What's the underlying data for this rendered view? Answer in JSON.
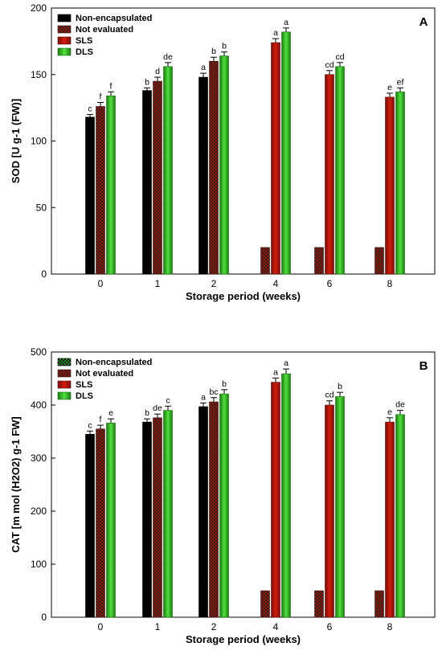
{
  "colors": {
    "non_encapsulated": "#000000",
    "not_evaluated": "#8b1c12",
    "not_evaluated_check": "#3a1a14",
    "sls": "#d01c0c",
    "sls_dark": "#7a0f08",
    "dls": "#3bd12b",
    "dls_dark": "#1c7a12"
  },
  "chart_data": [
    {
      "type": "bar",
      "panel_label": "A",
      "ylabel": "SOD [U g-1 (FW)]",
      "xlabel": "Storage period (weeks)",
      "ylim": [
        0,
        200
      ],
      "yticks": [
        0,
        50,
        100,
        150,
        200
      ],
      "categories": [
        "0",
        "1",
        "2",
        "4",
        "6",
        "8"
      ],
      "legend_position": "top-left",
      "series": [
        {
          "name": "Non-encapsulated",
          "values": [
            118,
            138,
            148,
            null,
            null,
            null
          ],
          "errors": [
            2,
            2,
            3,
            0,
            0,
            0
          ],
          "letters": [
            "c",
            "b",
            "a",
            "",
            "",
            ""
          ]
        },
        {
          "name": "Not evaluated",
          "values": [
            126,
            145,
            160,
            20,
            20,
            20
          ],
          "errors": [
            3,
            3,
            3,
            0,
            0,
            0
          ],
          "letters": [
            "f",
            "d",
            "b",
            "",
            "",
            ""
          ]
        },
        {
          "name": "SLS",
          "values": [
            null,
            null,
            null,
            174,
            150,
            133
          ],
          "errors": [
            0,
            0,
            0,
            3,
            3,
            3
          ],
          "letters": [
            "",
            "",
            "",
            "a",
            "cd",
            "e"
          ]
        },
        {
          "name": "DLS",
          "values": [
            134,
            156,
            164,
            182,
            156,
            137
          ],
          "errors": [
            3,
            3,
            3,
            3,
            3,
            3
          ],
          "letters": [
            "f",
            "de",
            "b",
            "a",
            "cd",
            "ef"
          ]
        }
      ]
    },
    {
      "type": "bar",
      "panel_label": "B",
      "ylabel": "CAT [m mol (H2O2) g-1 FW]",
      "xlabel": "Storage period (weeks)",
      "ylim": [
        0,
        500
      ],
      "yticks": [
        0,
        100,
        200,
        300,
        400,
        500
      ],
      "categories": [
        "0",
        "1",
        "2",
        "4",
        "6",
        "8"
      ],
      "legend_position": "top-left",
      "series": [
        {
          "name": "Non-encapsulated",
          "values": [
            345,
            368,
            397,
            null,
            null,
            null
          ],
          "errors": [
            6,
            6,
            7,
            0,
            0,
            0
          ],
          "letters": [
            "c",
            "b",
            "a",
            "",
            "",
            ""
          ]
        },
        {
          "name": "Not evaluated",
          "values": [
            355,
            376,
            406,
            50,
            50,
            50
          ],
          "errors": [
            7,
            7,
            8,
            0,
            0,
            0
          ],
          "letters": [
            "f",
            "de",
            "bc",
            "",
            "",
            ""
          ]
        },
        {
          "name": "SLS",
          "values": [
            null,
            null,
            null,
            443,
            400,
            368
          ],
          "errors": [
            0,
            0,
            0,
            8,
            8,
            8
          ],
          "letters": [
            "",
            "",
            "",
            "a",
            "cd",
            "e"
          ]
        },
        {
          "name": "DLS",
          "values": [
            366,
            390,
            421,
            459,
            416,
            382
          ],
          "errors": [
            8,
            8,
            8,
            9,
            8,
            8
          ],
          "letters": [
            "e",
            "c",
            "b",
            "a",
            "b",
            "de"
          ]
        }
      ]
    }
  ]
}
